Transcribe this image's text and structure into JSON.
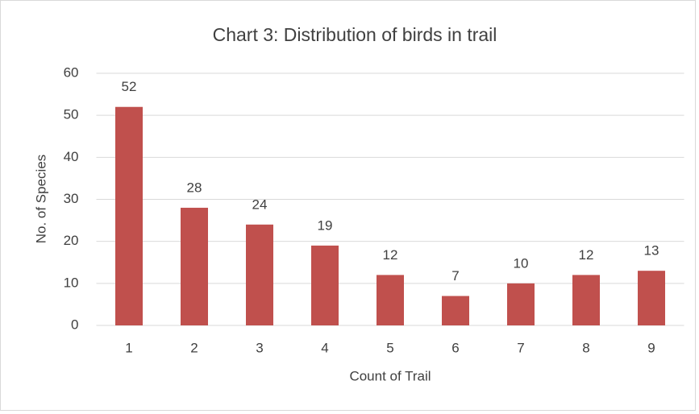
{
  "chart_data": {
    "type": "bar",
    "title": "Chart 3: Distribution of birds in trail",
    "x_label": "Count of Trail",
    "y_label": "No. of Species",
    "categories": [
      "1",
      "2",
      "3",
      "4",
      "5",
      "6",
      "7",
      "8",
      "9"
    ],
    "values": [
      52,
      28,
      24,
      19,
      12,
      7,
      10,
      12,
      13
    ],
    "color": "#c0504d",
    "ylim": [
      0,
      60
    ],
    "yticks": [
      0,
      10,
      20,
      30,
      40,
      50,
      60
    ],
    "grid": true,
    "data_labels": true
  }
}
